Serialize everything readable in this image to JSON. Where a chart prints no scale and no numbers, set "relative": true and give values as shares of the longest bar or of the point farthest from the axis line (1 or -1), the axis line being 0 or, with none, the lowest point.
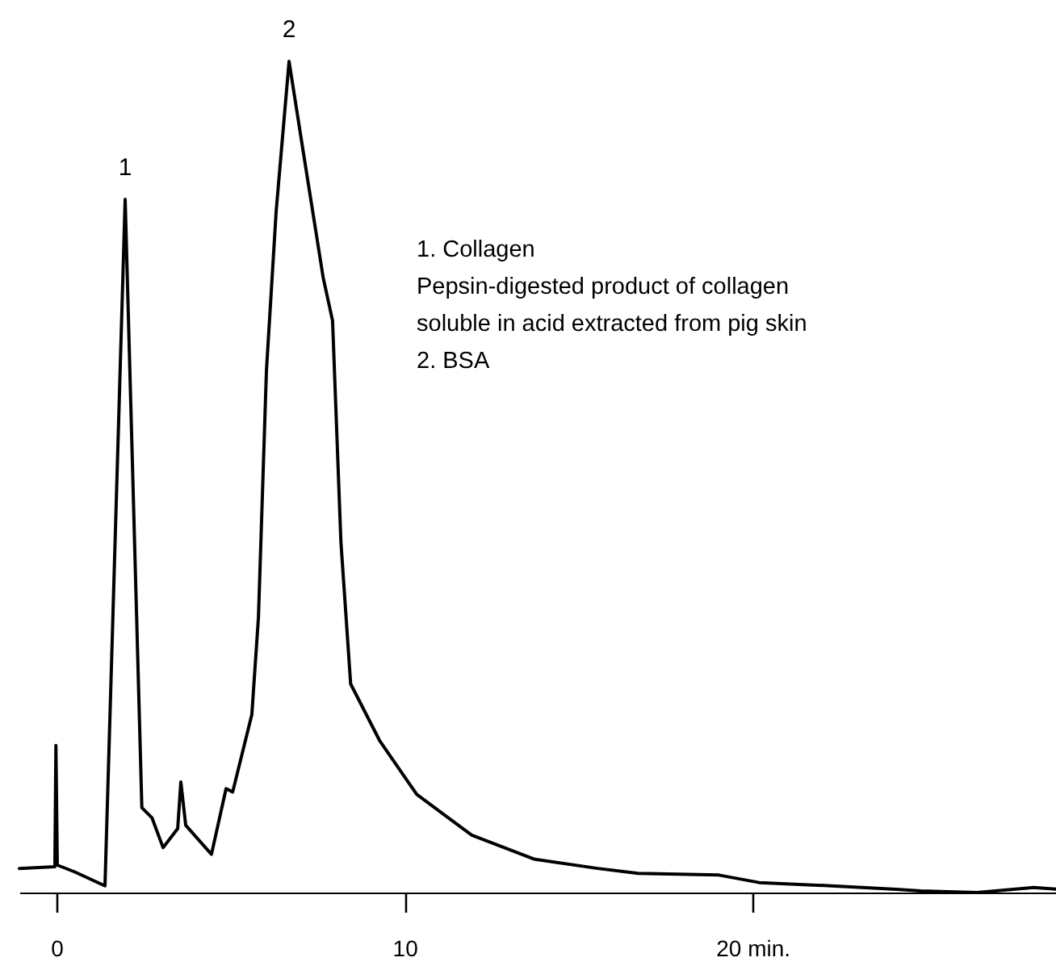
{
  "chart_data": {
    "type": "line",
    "relative": true,
    "x": [
      -1.07,
      -0.05,
      -0.02,
      0.02,
      0.51,
      1.39,
      1.97,
      2.45,
      2.74,
      3.06,
      3.48,
      3.57,
      3.71,
      4.45,
      4.87,
      5.06,
      5.61,
      5.8,
      6.03,
      6.31,
      6.68,
      7.1,
      7.66,
      7.93,
      8.17,
      8.45,
      9.28,
      10.35,
      11.93,
      13.74,
      15.55,
      16.71,
      19.03,
      20.19,
      22.27,
      24.13,
      24.83,
      26.45,
      28.07,
      28.72
    ],
    "series": [
      {
        "color": "#000000",
        "values": [
          0.029,
          0.031,
          0.177,
          0.033,
          0.025,
          0.008,
          0.834,
          0.102,
          0.09,
          0.054,
          0.077,
          0.133,
          0.081,
          0.046,
          0.125,
          0.121,
          0.214,
          0.331,
          0.628,
          0.82,
          1,
          0.888,
          0.74,
          0.688,
          0.422,
          0.251,
          0.183,
          0.118,
          0.069,
          0.04,
          0.029,
          0.023,
          0.021,
          0.012,
          0.008,
          0.004,
          0.002,
          0,
          0.006,
          0.004
        ]
      }
    ],
    "xlim": [
      -1.07,
      28.72
    ],
    "xticks": [
      0,
      10,
      {
        "value": 20,
        "label": "20 min."
      }
    ],
    "grid": false,
    "marker": "none",
    "line_style": "solid",
    "annotations": [
      {
        "text": "1",
        "x": 1.97,
        "y": 0.834
      },
      {
        "text": "2",
        "x": 6.68,
        "y": 1
      },
      "1. Collagen",
      "   Pepsin-digested product of collagen",
      "   soluble in acid extracted from pig skin",
      "2. BSA"
    ]
  }
}
